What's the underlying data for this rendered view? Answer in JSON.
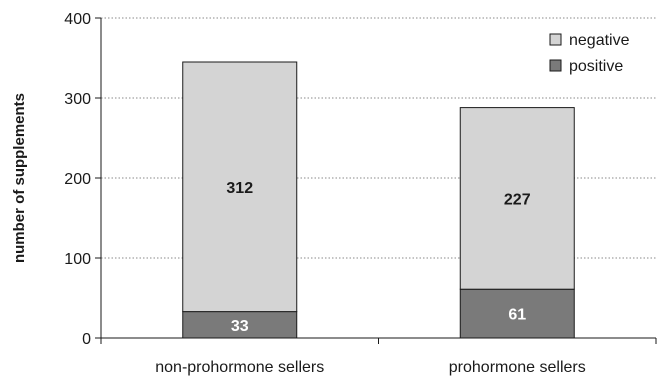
{
  "chart_data": {
    "type": "bar",
    "stacked": true,
    "categories": [
      "non-prohormone sellers",
      "prohormone sellers"
    ],
    "series": [
      {
        "name": "positive",
        "values": [
          33,
          61
        ],
        "color": "#7a7a7a",
        "label_color": "#ffffff"
      },
      {
        "name": "negative",
        "values": [
          312,
          227
        ],
        "color": "#d4d4d4",
        "label_color": "#1a1a1a"
      }
    ],
    "ylabel": "number of supplements",
    "xlabel": "",
    "ylim": [
      0,
      400
    ],
    "yticks": [
      0,
      100,
      200,
      300,
      400
    ],
    "grid": "horizontal-dotted",
    "legend_position": "top-right",
    "legend_order": [
      "negative",
      "positive"
    ]
  }
}
